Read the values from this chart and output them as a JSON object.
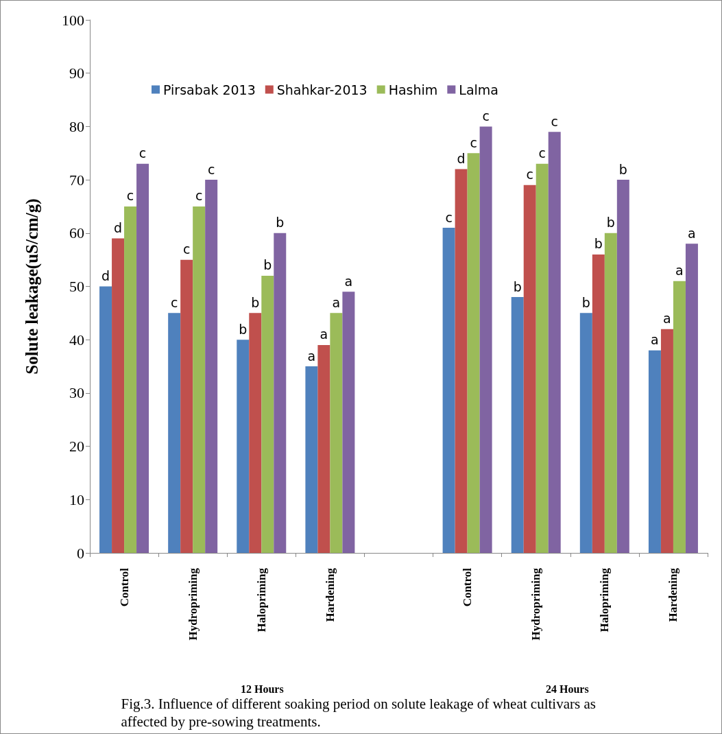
{
  "chart_data": {
    "type": "bar",
    "ylabel": "Solute leakage(uS/cm/g)",
    "categories": [
      "Control",
      "Hydropriming",
      "Halopriming",
      "Hardening",
      null,
      "Control",
      "Hydropriming",
      "Halopriming",
      "Hardening"
    ],
    "series": [
      {
        "name": "Pirsabak 2013",
        "color": "#4f81bd",
        "values": [
          50,
          45,
          40,
          35,
          null,
          61,
          48,
          45,
          38
        ],
        "value_labels": [
          "d",
          "c",
          "b",
          "a",
          null,
          "c",
          "b",
          "b",
          "a"
        ]
      },
      {
        "name": "Shahkar-2013",
        "color": "#c0504d",
        "values": [
          59,
          55,
          45,
          39,
          null,
          72,
          69,
          56,
          42
        ],
        "value_labels": [
          "d",
          "c",
          "b",
          "a",
          null,
          "d",
          "c",
          "b",
          "a"
        ]
      },
      {
        "name": "Hashim",
        "color": "#9bbb59",
        "values": [
          65,
          65,
          52,
          45,
          null,
          75,
          73,
          60,
          51
        ],
        "value_labels": [
          "c",
          "c",
          "b",
          "a",
          null,
          "c",
          "c",
          "b",
          "a"
        ]
      },
      {
        "name": "Lalma",
        "color": "#8064a2",
        "values": [
          73,
          70,
          60,
          49,
          null,
          80,
          79,
          70,
          58
        ],
        "value_labels": [
          "c",
          "c",
          "b",
          "a",
          null,
          "c",
          "c",
          "b",
          "a"
        ]
      }
    ],
    "ylim": [
      0,
      100
    ],
    "yticks": [
      0,
      10,
      20,
      30,
      40,
      50,
      60,
      70,
      80,
      90,
      100
    ],
    "grid": false,
    "legend": "top",
    "annotations": [
      "12 Hours",
      "24 Hours",
      "Fig.3. Influence of different soaking period on solute leakage of wheat cultivars as affected by pre-sowing treatments."
    ]
  }
}
